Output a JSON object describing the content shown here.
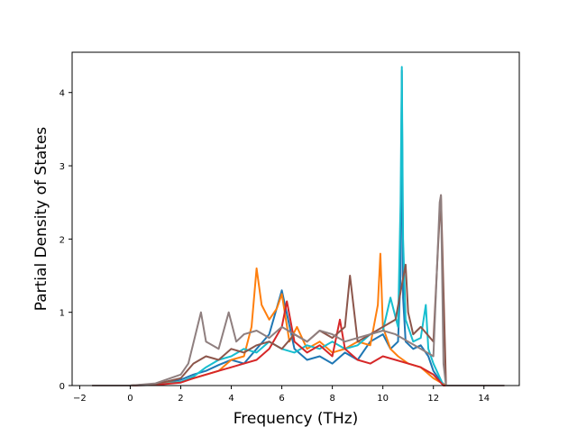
{
  "chart_data": {
    "type": "line",
    "title": "",
    "xlabel": "Frequency (THz)",
    "ylabel": "Partial Density of States",
    "xlim": [
      -2.3,
      15.4
    ],
    "ylim": [
      0,
      4.55
    ],
    "xticks": [
      -2,
      0,
      2,
      4,
      6,
      8,
      10,
      12,
      14
    ],
    "yticks": [
      0,
      1,
      2,
      3,
      4
    ],
    "grid": false,
    "legend": "none",
    "series": [
      {
        "color": "#1f77b4",
        "x": [
          -1.5,
          0.0,
          1.0,
          2.0,
          2.5,
          3.0,
          3.5,
          4.0,
          4.5,
          5.0,
          5.5,
          6.0,
          6.5,
          7.0,
          7.5,
          8.0,
          8.5,
          9.0,
          9.5,
          10.0,
          10.3,
          10.6,
          10.7,
          10.75,
          10.8,
          10.9,
          11.2,
          11.5,
          11.8,
          12.0,
          12.3,
          12.5,
          14.8
        ],
        "y": [
          0.0,
          0.0,
          0.02,
          0.08,
          0.15,
          0.2,
          0.28,
          0.35,
          0.3,
          0.5,
          0.7,
          1.3,
          0.5,
          0.35,
          0.4,
          0.3,
          0.45,
          0.35,
          0.6,
          0.7,
          0.5,
          0.6,
          1.5,
          4.3,
          1.2,
          0.6,
          0.5,
          0.55,
          0.4,
          0.2,
          0.05,
          0.0,
          0.0
        ]
      },
      {
        "color": "#ff7f0e",
        "x": [
          -1.5,
          0.0,
          1.0,
          2.0,
          2.5,
          3.0,
          3.5,
          4.0,
          4.5,
          4.8,
          5.0,
          5.2,
          5.5,
          5.8,
          6.0,
          6.3,
          6.6,
          7.0,
          7.5,
          8.0,
          8.5,
          9.0,
          9.5,
          9.8,
          9.9,
          10.0,
          10.3,
          10.6,
          11.0,
          11.5,
          12.0,
          12.5,
          14.8
        ],
        "y": [
          0.0,
          0.0,
          0.02,
          0.05,
          0.1,
          0.15,
          0.2,
          0.35,
          0.4,
          0.8,
          1.6,
          1.1,
          0.9,
          1.05,
          1.25,
          0.6,
          0.8,
          0.5,
          0.6,
          0.45,
          0.5,
          0.6,
          0.55,
          1.1,
          1.8,
          0.8,
          0.5,
          0.4,
          0.3,
          0.25,
          0.1,
          0.0,
          0.0
        ]
      },
      {
        "color": "#17becf",
        "x": [
          -1.5,
          0.0,
          1.0,
          2.0,
          2.5,
          3.0,
          3.5,
          4.0,
          4.5,
          5.0,
          5.5,
          6.0,
          6.5,
          7.0,
          7.5,
          8.0,
          8.5,
          9.0,
          9.5,
          10.0,
          10.3,
          10.6,
          10.7,
          10.75,
          10.8,
          10.9,
          11.2,
          11.5,
          11.7,
          11.8,
          12.0,
          12.4,
          14.8
        ],
        "y": [
          0.0,
          0.0,
          0.01,
          0.05,
          0.12,
          0.25,
          0.35,
          0.4,
          0.5,
          0.45,
          0.6,
          0.5,
          0.45,
          0.55,
          0.5,
          0.6,
          0.5,
          0.55,
          0.7,
          0.75,
          1.2,
          0.8,
          2.5,
          4.35,
          2.0,
          0.9,
          0.6,
          0.65,
          1.1,
          0.5,
          0.3,
          0.0,
          0.0
        ]
      },
      {
        "color": "#d62728",
        "x": [
          -1.5,
          0.0,
          1.0,
          2.0,
          2.5,
          3.0,
          3.5,
          4.0,
          4.5,
          5.0,
          5.5,
          6.0,
          6.2,
          6.5,
          7.0,
          7.5,
          8.0,
          8.3,
          8.5,
          9.0,
          9.5,
          10.0,
          10.5,
          11.0,
          11.5,
          12.0,
          12.4,
          14.8
        ],
        "y": [
          0.0,
          0.0,
          0.01,
          0.04,
          0.1,
          0.15,
          0.2,
          0.25,
          0.3,
          0.35,
          0.5,
          0.8,
          1.15,
          0.6,
          0.45,
          0.55,
          0.4,
          0.9,
          0.5,
          0.35,
          0.3,
          0.4,
          0.35,
          0.3,
          0.25,
          0.15,
          0.0,
          0.0
        ]
      },
      {
        "color": "#8c564b",
        "x": [
          -1.5,
          0.0,
          1.0,
          2.0,
          2.5,
          3.0,
          3.5,
          4.0,
          4.5,
          5.0,
          5.5,
          6.0,
          6.5,
          7.0,
          7.5,
          8.0,
          8.5,
          8.7,
          9.0,
          9.5,
          10.0,
          10.5,
          10.9,
          11.0,
          11.2,
          11.5,
          12.0,
          12.2,
          12.3,
          12.5,
          14.8
        ],
        "y": [
          0.0,
          0.0,
          0.02,
          0.1,
          0.3,
          0.4,
          0.35,
          0.5,
          0.45,
          0.55,
          0.6,
          0.5,
          0.7,
          0.6,
          0.75,
          0.65,
          0.8,
          1.5,
          0.6,
          0.7,
          0.8,
          0.9,
          1.65,
          1.0,
          0.7,
          0.8,
          0.6,
          2.0,
          2.6,
          0.0,
          0.0
        ]
      },
      {
        "color": "#8f7f7f",
        "x": [
          -1.5,
          0.0,
          1.0,
          2.0,
          2.3,
          2.8,
          3.0,
          3.5,
          3.9,
          4.2,
          4.5,
          5.0,
          5.5,
          6.0,
          6.5,
          7.0,
          7.5,
          8.0,
          8.5,
          9.0,
          9.5,
          10.0,
          10.5,
          11.0,
          11.5,
          12.0,
          12.25,
          12.3,
          12.4,
          12.5,
          14.8
        ],
        "y": [
          0.0,
          0.0,
          0.03,
          0.15,
          0.3,
          1.0,
          0.6,
          0.5,
          1.0,
          0.6,
          0.7,
          0.75,
          0.65,
          0.8,
          0.7,
          0.6,
          0.75,
          0.7,
          0.6,
          0.65,
          0.7,
          0.75,
          0.7,
          0.6,
          0.5,
          0.4,
          2.5,
          2.6,
          0.3,
          0.0,
          0.0
        ]
      }
    ]
  }
}
